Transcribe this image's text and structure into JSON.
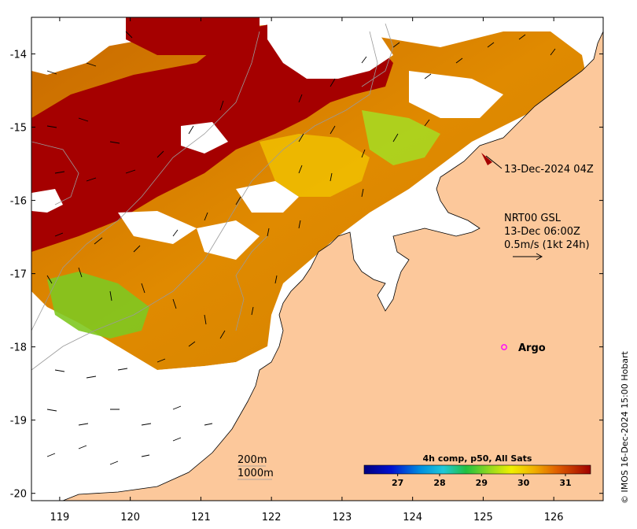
{
  "map": {
    "x_ticks": [
      "119",
      "120",
      "121",
      "122",
      "123",
      "124",
      "125",
      "126"
    ],
    "y_ticks": [
      "-14",
      "-15",
      "-16",
      "-17",
      "-18",
      "-19",
      "-20"
    ],
    "lon_range": [
      118.6,
      126.7
    ],
    "lat_range": [
      -20.1,
      -13.5
    ]
  },
  "annotations": {
    "timestamp_track": "13-Dec-2024 04Z",
    "current_line1": "NRT00 GSL",
    "current_line2": "13-Dec 06:00Z",
    "current_line3": "0.5m/s (1kt 24h)",
    "argo": "Argo",
    "isobath_200": "200m",
    "isobath_1000": "1000m"
  },
  "colorbar": {
    "title": "4h comp, p50, All Sats",
    "ticks": [
      "27",
      "28",
      "29",
      "30",
      "31"
    ],
    "range": [
      26.2,
      31.6
    ]
  },
  "credit": "© IMOS 16-Dec-2024 15:00 Hobart",
  "colors": {
    "land": "#fcc89b",
    "no_data": "#ffffff",
    "hot": "#a50000",
    "argo": "#ff00ff"
  }
}
